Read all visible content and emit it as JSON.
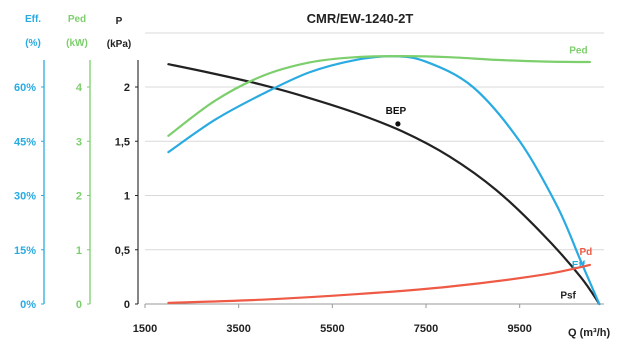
{
  "chart_data": {
    "type": "line",
    "title": "CMR/EW-1240-2T",
    "xlabel": "Q (m³/h)",
    "xlim": [
      1500,
      11300
    ],
    "x_ticks": [
      "1500",
      "3500",
      "5500",
      "7500",
      "9500"
    ],
    "axes": {
      "eff": {
        "label_line1": "Eff.",
        "label_line2": "(%)",
        "ticks": [
          "0%",
          "15%",
          "30%",
          "45%",
          "60%"
        ],
        "ylim": [
          0,
          75
        ],
        "color": "#29abe2"
      },
      "ped": {
        "label_line1": "Ped",
        "label_line2": "(kW)",
        "ticks": [
          "0",
          "1",
          "2",
          "3",
          "4"
        ],
        "ylim": [
          0,
          5
        ],
        "color": "#7ccf6c"
      },
      "p": {
        "label_line1": "P",
        "label_line2": "(kPa)",
        "ticks": [
          "0",
          "0,5",
          "1",
          "1,5",
          "2"
        ],
        "ylim": [
          0,
          2.5
        ],
        "color": "#222222"
      }
    },
    "grid": "horizontal",
    "series": [
      {
        "name": "Psf",
        "axis": "p",
        "color": "#222222",
        "x": [
          2000,
          3000,
          4000,
          5000,
          6000,
          7000,
          8000,
          9000,
          10000,
          10800,
          11200
        ],
        "y": [
          2.21,
          2.12,
          2.02,
          1.9,
          1.76,
          1.59,
          1.36,
          1.05,
          0.64,
          0.25,
          0.0
        ]
      },
      {
        "name": "Eff",
        "axis": "eff",
        "color": "#29abe2",
        "x": [
          2000,
          3000,
          4000,
          5000,
          6000,
          6800,
          7500,
          8500,
          9500,
          10300,
          10800,
          11200
        ],
        "y": [
          42,
          51,
          58,
          64,
          67.5,
          68.5,
          67,
          60,
          45,
          27,
          12,
          0
        ]
      },
      {
        "name": "Ped",
        "axis": "ped",
        "color": "#7ccf6c",
        "x": [
          2000,
          3000,
          4000,
          5000,
          6000,
          7000,
          8000,
          9000,
          10000,
          11000
        ],
        "y": [
          3.1,
          3.75,
          4.2,
          4.45,
          4.55,
          4.57,
          4.55,
          4.5,
          4.47,
          4.46
        ]
      },
      {
        "name": "Pd",
        "axis": "p",
        "color": "#ee5a45",
        "x": [
          2000,
          4000,
          6000,
          8000,
          10000,
          11000
        ],
        "y": [
          0.01,
          0.04,
          0.09,
          0.16,
          0.27,
          0.36
        ]
      }
    ],
    "annotations": [
      {
        "text": "BEP",
        "x": 6900,
        "y": 1.66,
        "axis": "p"
      }
    ]
  }
}
